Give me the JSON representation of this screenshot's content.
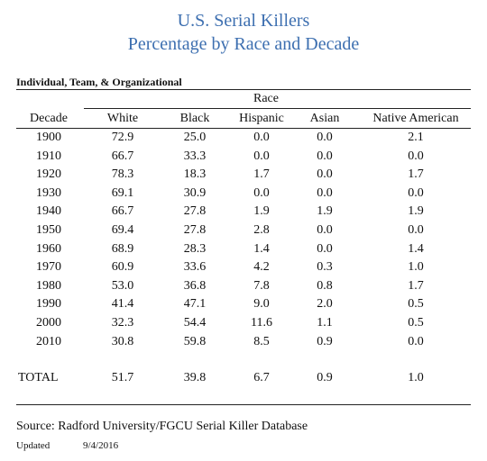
{
  "title": {
    "line1": "U.S. Serial Killers",
    "line2": "Percentage by Race and Decade"
  },
  "table": {
    "subtitle": "Individual, Team, & Organizational",
    "group_header": "Race",
    "columns": [
      "Decade",
      "White",
      "Black",
      "Hispanic",
      "Asian",
      "Native American"
    ],
    "rows": [
      [
        "1900",
        "72.9",
        "25.0",
        "0.0",
        "0.0",
        "2.1"
      ],
      [
        "1910",
        "66.7",
        "33.3",
        "0.0",
        "0.0",
        "0.0"
      ],
      [
        "1920",
        "78.3",
        "18.3",
        "1.7",
        "0.0",
        "1.7"
      ],
      [
        "1930",
        "69.1",
        "30.9",
        "0.0",
        "0.0",
        "0.0"
      ],
      [
        "1940",
        "66.7",
        "27.8",
        "1.9",
        "1.9",
        "1.9"
      ],
      [
        "1950",
        "69.4",
        "27.8",
        "2.8",
        "0.0",
        "0.0"
      ],
      [
        "1960",
        "68.9",
        "28.3",
        "1.4",
        "0.0",
        "1.4"
      ],
      [
        "1970",
        "60.9",
        "33.6",
        "4.2",
        "0.3",
        "1.0"
      ],
      [
        "1980",
        "53.0",
        "36.8",
        "7.8",
        "0.8",
        "1.7"
      ],
      [
        "1990",
        "41.4",
        "47.1",
        "9.0",
        "2.0",
        "0.5"
      ],
      [
        "2000",
        "32.3",
        "54.4",
        "11.6",
        "1.1",
        "0.5"
      ],
      [
        "2010",
        "30.8",
        "59.8",
        "8.5",
        "0.9",
        "0.0"
      ]
    ],
    "total": [
      "TOTAL",
      "51.7",
      "39.8",
      "6.7",
      "0.9",
      "1.0"
    ]
  },
  "footer": {
    "source": "Source: Radford University/FGCU Serial Killer Database",
    "updated_label": "Updated",
    "updated_date": "9/4/2016"
  },
  "colors": {
    "title": "#3d6fb0",
    "text": "#111111",
    "rule": "#222222"
  }
}
